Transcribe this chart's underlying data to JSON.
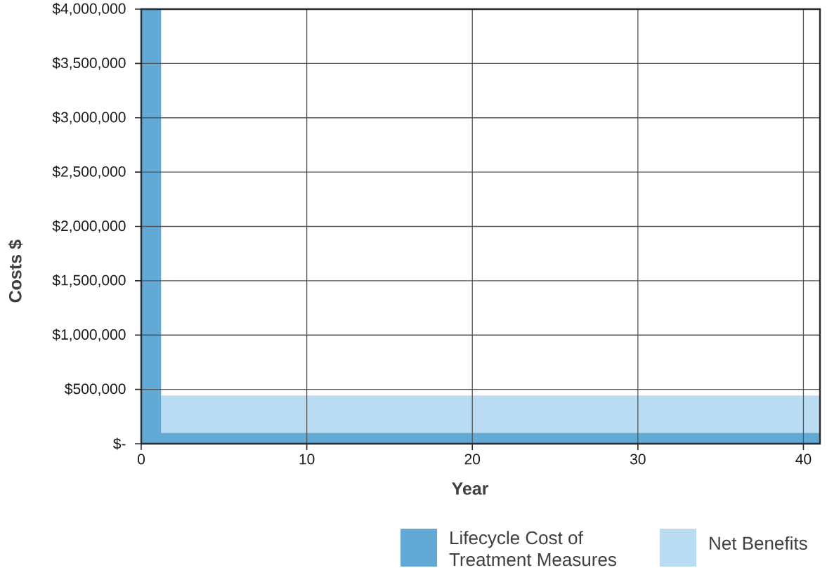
{
  "chart_data": {
    "type": "area",
    "stacked": true,
    "xlabel": "Year",
    "ylabel": "Costs $",
    "x": [
      0,
      1.2,
      1.2,
      41
    ],
    "series": [
      {
        "name": "Lifecycle Cost of Treatment Measures",
        "color": "#62a9d5",
        "values": [
          4000000,
          4000000,
          100000,
          100000
        ]
      },
      {
        "name": "Net Benefits",
        "color": "#badcf3",
        "values": [
          0,
          0,
          345000,
          345000
        ]
      }
    ],
    "xlim": [
      0,
      41
    ],
    "xticks": [
      0,
      10,
      20,
      30,
      40
    ],
    "ylim": [
      0,
      4000000
    ],
    "yticks": [
      {
        "value": 0,
        "label": "$-"
      },
      {
        "value": 500000,
        "label": "$500,000"
      },
      {
        "value": 1000000,
        "label": "$1,000,000"
      },
      {
        "value": 1500000,
        "label": "$1,500,000"
      },
      {
        "value": 2000000,
        "label": "$2,000,000"
      },
      {
        "value": 2500000,
        "label": "$2,500,000"
      },
      {
        "value": 3000000,
        "label": "$3,000,000"
      },
      {
        "value": 3500000,
        "label": "$3,500,000"
      },
      {
        "value": 4000000,
        "label": "$4,000,000"
      }
    ],
    "grid": true,
    "legend": "bottom"
  }
}
